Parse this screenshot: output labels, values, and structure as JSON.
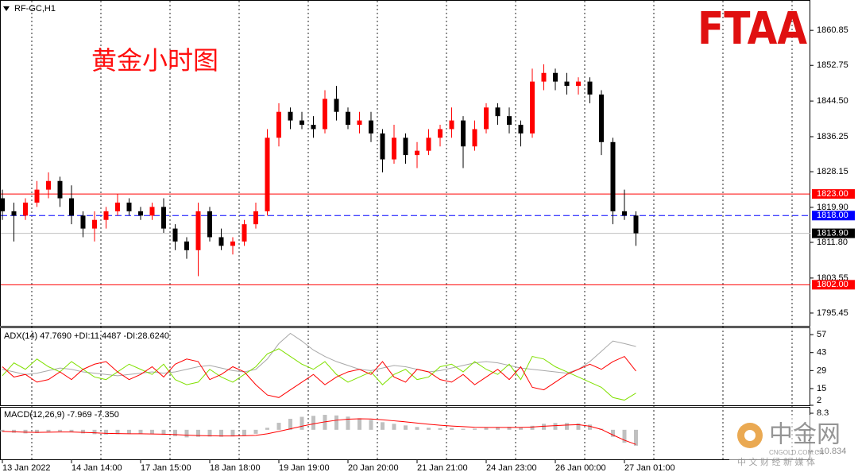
{
  "chart_data": [
    {
      "type": "candlestick",
      "title": "RF-GC,H1",
      "annotation": "黄金小时图",
      "categories": [
        "13 Jan 2022",
        null,
        null,
        null,
        null,
        null,
        "14 Jan 14:00",
        null,
        null,
        null,
        null,
        null,
        "17 Jan 15:00",
        null,
        null,
        null,
        null,
        null,
        "18 Jan 18:00",
        null,
        null,
        null,
        null,
        null,
        "19 Jan 19:00",
        null,
        null,
        null,
        null,
        null,
        "20 Jan 20:00",
        null,
        null,
        null,
        null,
        null,
        "21 Jan 21:00",
        null,
        null,
        null,
        null,
        null,
        "24 Jan 23:00",
        null,
        null,
        null,
        null,
        null,
        "26 Jan 00:00",
        null,
        null,
        null,
        null,
        null,
        "27 Jan 01:00",
        null
      ],
      "open": [
        1822,
        1819,
        1818,
        1821,
        1824,
        1826,
        1822,
        1818,
        1815,
        1817,
        1819,
        1821,
        1819,
        1818,
        1820,
        1815,
        1812,
        1810,
        1819,
        1813,
        1811,
        1812,
        1816,
        1819,
        1836,
        1842,
        1840,
        1839,
        1838,
        1845,
        1842,
        1839,
        1840,
        1837,
        1831,
        1836,
        1832,
        1833,
        1836,
        1838,
        1840,
        1834,
        1838,
        1843,
        1841,
        1839,
        1837,
        1849,
        1851,
        1849,
        1848,
        1849,
        1846,
        1835,
        1819,
        1818
      ],
      "high": [
        1824,
        1821,
        1822,
        1826,
        1828,
        1827,
        1825,
        1819,
        1819,
        1820,
        1823,
        1822,
        1820,
        1821,
        1822,
        1816,
        1813,
        1821,
        1820,
        1815,
        1813,
        1817,
        1821,
        1838,
        1844,
        1843,
        1842,
        1841,
        1847,
        1848,
        1843,
        1842,
        1842,
        1838,
        1839,
        1837,
        1835,
        1838,
        1839,
        1843,
        1841,
        1840,
        1844,
        1844,
        1843,
        1840,
        1852,
        1853,
        1852,
        1851,
        1850,
        1850,
        1847,
        1836,
        1824,
        1819
      ],
      "low": [
        1817,
        1812,
        1817,
        1820,
        1822,
        1820,
        1816,
        1813,
        1812,
        1815,
        1818,
        1818,
        1817,
        1817,
        1814,
        1810,
        1808,
        1804,
        1812,
        1810,
        1809,
        1811,
        1815,
        1818,
        1834,
        1838,
        1838,
        1836,
        1837,
        1840,
        1838,
        1837,
        1835,
        1828,
        1830,
        1830,
        1829,
        1832,
        1834,
        1836,
        1829,
        1833,
        1837,
        1839,
        1837,
        1834,
        1836,
        1847,
        1847,
        1846,
        1846,
        1844,
        1832,
        1816,
        1817,
        1811
      ],
      "close": [
        1819,
        1818,
        1821,
        1824,
        1826,
        1822,
        1818,
        1815,
        1817,
        1819,
        1821,
        1819,
        1818,
        1820,
        1815,
        1812,
        1810,
        1819,
        1813,
        1811,
        1812,
        1816,
        1819,
        1836,
        1842,
        1840,
        1839,
        1838,
        1845,
        1842,
        1839,
        1840,
        1837,
        1831,
        1836,
        1832,
        1833,
        1836,
        1838,
        1840,
        1834,
        1838,
        1843,
        1841,
        1839,
        1837,
        1849,
        1851,
        1849,
        1848,
        1849,
        1846,
        1835,
        1819,
        1818,
        1813.9
      ],
      "up_color": "#ff0000",
      "down_color": "#000000",
      "ylim": [
        1792.5,
        1867.5
      ],
      "yticks": [
        1860.85,
        1852.75,
        {
          "value": 1844.5,
          "label": "1844.50"
        },
        1836.25,
        1828.15,
        {
          "value": 1819.9,
          "label": "1819.90"
        },
        {
          "value": 1811.8,
          "label": "1811.80"
        },
        1803.55,
        1795.45
      ],
      "levels": [
        {
          "value": 1823,
          "label": "1823.00",
          "color": "#ff0000",
          "label_color": "#ff0000",
          "style": "solid"
        },
        {
          "value": 1818,
          "label": "1818.00",
          "color": "#0000ff",
          "label_color": "#0000ff",
          "style": "dashed"
        },
        {
          "value": 1813.9,
          "label": "1813.90",
          "color": "#c0c0c0",
          "label_color": "#000000",
          "style": "solid"
        },
        {
          "value": 1802,
          "label": "1802.00",
          "color": "#ff0000",
          "label_color": "#ff0000",
          "style": "solid"
        }
      ],
      "grid": "vertical"
    },
    {
      "type": "line",
      "title": "ADX(14) 47.7690 +DI:11.4487 -DI:28.6240",
      "series": [
        {
          "color": "#a8a8a8",
          "values": [
            30,
            28,
            26,
            27,
            29,
            31,
            30,
            28,
            27,
            26,
            25,
            26,
            27,
            28,
            27,
            28,
            30,
            32,
            33,
            31,
            29,
            28,
            30,
            38,
            50,
            58,
            52,
            45,
            40,
            36,
            33,
            30,
            29,
            31,
            33,
            32,
            30,
            28,
            29,
            31,
            33,
            35,
            36,
            35,
            33,
            31,
            30,
            29,
            28,
            27,
            30,
            36,
            44,
            52,
            50,
            47.769
          ]
        },
        {
          "color": "#80e000",
          "values": [
            25,
            35,
            30,
            38,
            32,
            28,
            36,
            30,
            24,
            22,
            28,
            34,
            30,
            26,
            34,
            22,
            18,
            20,
            30,
            24,
            20,
            26,
            32,
            42,
            46,
            40,
            34,
            30,
            36,
            26,
            20,
            24,
            28,
            18,
            26,
            30,
            22,
            24,
            32,
            34,
            28,
            36,
            30,
            26,
            34,
            22,
            40,
            38,
            32,
            28,
            24,
            20,
            16,
            8,
            6,
            11.4487
          ]
        },
        {
          "color": "#ff0000",
          "values": [
            32,
            24,
            26,
            20,
            22,
            28,
            22,
            30,
            34,
            36,
            28,
            22,
            26,
            32,
            24,
            34,
            38,
            36,
            22,
            26,
            32,
            28,
            18,
            10,
            8,
            14,
            20,
            26,
            18,
            24,
            28,
            30,
            26,
            36,
            24,
            20,
            30,
            28,
            22,
            20,
            26,
            18,
            24,
            30,
            22,
            32,
            16,
            14,
            20,
            26,
            30,
            34,
            30,
            36,
            40,
            28.624
          ]
        }
      ],
      "ylim": [
        2,
        62
      ],
      "yticks": [
        57,
        43,
        29,
        15,
        2
      ]
    },
    {
      "type": "bar",
      "title": "MACD(12,26,9) -7.969 -7.350",
      "series": [
        {
          "mark": "bar",
          "color": "#c0c0c0",
          "values": [
            -1,
            -1.5,
            -1.8,
            -1.6,
            -1,
            -0.8,
            -1.2,
            -1.8,
            -2.2,
            -2.4,
            -2.2,
            -2,
            -2.1,
            -2.2,
            -2.6,
            -3.2,
            -3.8,
            -3.5,
            -3.4,
            -3.5,
            -3.3,
            -2.8,
            -2,
            1,
            3.5,
            5.5,
            6.5,
            7,
            7.5,
            7.2,
            6.6,
            5.8,
            5,
            3.8,
            3,
            2.2,
            1.4,
            1,
            0.8,
            0.9,
            0.5,
            0.6,
            1,
            1.4,
            1.5,
            1.2,
            2,
            3,
            3.4,
            3.4,
            3.2,
            2.6,
            0.5,
            -3.5,
            -6.5,
            -7.969
          ]
        },
        {
          "mark": "line",
          "color": "#ff0000",
          "values": [
            -0.8,
            -1,
            -1.2,
            -1.3,
            -1.2,
            -1.1,
            -1.1,
            -1.3,
            -1.5,
            -1.8,
            -1.9,
            -2,
            -2,
            -2.1,
            -2.2,
            -2.4,
            -2.7,
            -2.9,
            -3,
            -3.1,
            -3.1,
            -3,
            -2.8,
            -2,
            -0.8,
            0.5,
            1.8,
            3,
            4,
            4.8,
            5.3,
            5.5,
            5.4,
            5,
            4.5,
            4,
            3.4,
            2.8,
            2.3,
            1.9,
            1.6,
            1.3,
            1.2,
            1.2,
            1.2,
            1.2,
            1.4,
            1.8,
            2.1,
            2.4,
            2.6,
            1.8,
            0.2,
            -2.6,
            -5.2,
            -7.35
          ]
        }
      ],
      "ylim": [
        -14.8,
        11.1
      ],
      "yticks": [
        8.3,
        -10.834
      ]
    }
  ],
  "logo": "FTAA",
  "watermark": {
    "name": "中金网",
    "domain": "CNGOLD.COM.CN",
    "slogan": "中 文 财 经 新 媒 体"
  }
}
